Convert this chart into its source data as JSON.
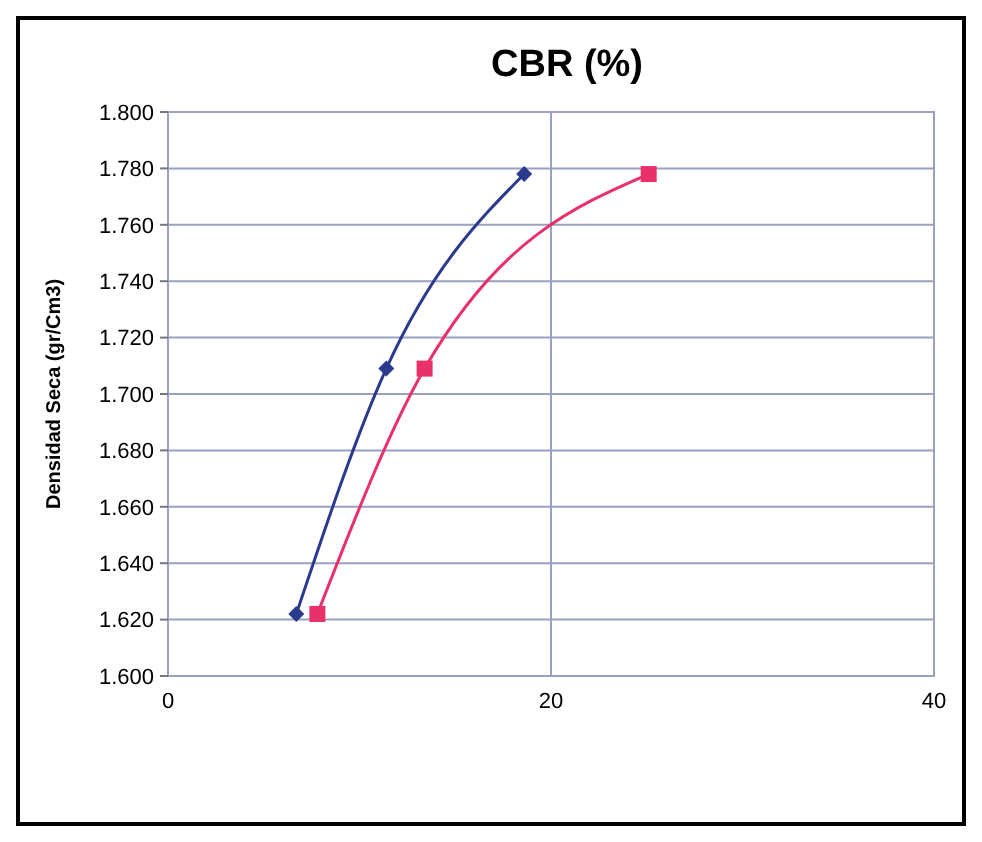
{
  "chart_data": {
    "type": "line",
    "title": "CBR  (%)",
    "ylabel": "Densidad Seca (gr/Cm3)",
    "xlim": [
      0,
      40
    ],
    "xticks": [
      0,
      20,
      40
    ],
    "ylim": [
      1.6,
      1.8
    ],
    "yticks": [
      {
        "value": 1.6,
        "label": "1.600"
      },
      {
        "value": 1.62,
        "label": "1.620"
      },
      {
        "value": 1.64,
        "label": "1.640"
      },
      {
        "value": 1.66,
        "label": "1.660"
      },
      {
        "value": 1.68,
        "label": "1.680"
      },
      {
        "value": 1.7,
        "label": "1.700"
      },
      {
        "value": 1.72,
        "label": "1.720"
      },
      {
        "value": 1.74,
        "label": "1.740"
      },
      {
        "value": 1.76,
        "label": "1.760"
      },
      {
        "value": 1.78,
        "label": "1.780"
      },
      {
        "value": 1.8,
        "label": "1.800"
      }
    ],
    "grid": true,
    "line_style": "solid",
    "series": [
      {
        "color": "#2b3a8c",
        "marker": "diamond",
        "x": [
          6.7,
          11.4,
          18.6
        ],
        "values": [
          1.622,
          1.709,
          1.778
        ]
      },
      {
        "color": "#e8306a",
        "marker": "square",
        "x": [
          7.8,
          13.4,
          25.1
        ],
        "values": [
          1.622,
          1.709,
          1.778
        ]
      }
    ]
  }
}
